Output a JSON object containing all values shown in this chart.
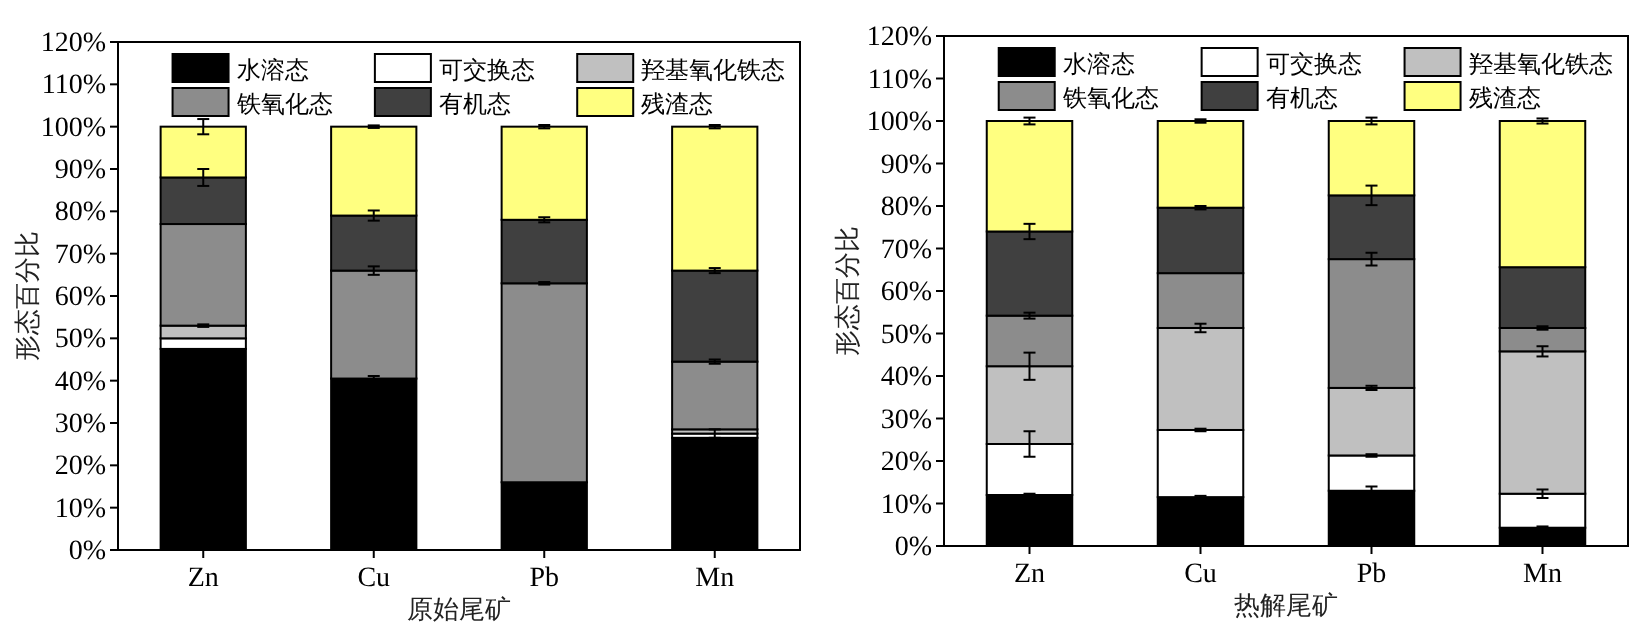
{
  "chart_data": [
    {
      "type": "bar",
      "stacked": true,
      "xlabel": "原始尾矿",
      "ylabel": "形态百分比",
      "categories": [
        "Zn",
        "Cu",
        "Pb",
        "Mn"
      ],
      "ylim": [
        0,
        120
      ],
      "yticks": [
        {
          "value": 0,
          "label": "0%"
        },
        {
          "value": 10,
          "label": "10%"
        },
        {
          "value": 20,
          "label": "20%"
        },
        {
          "value": 30,
          "label": "30%"
        },
        {
          "value": 40,
          "label": "40%"
        },
        {
          "value": 50,
          "label": "50%"
        },
        {
          "value": 60,
          "label": "60%"
        },
        {
          "value": 70,
          "label": "70%"
        },
        {
          "value": 80,
          "label": "80%"
        },
        {
          "value": 90,
          "label": "90%"
        },
        {
          "value": 100,
          "label": "100%"
        },
        {
          "value": 110,
          "label": "110%"
        },
        {
          "value": 120,
          "label": "120%"
        }
      ],
      "legend": "top",
      "grid": false,
      "series": [
        {
          "name": "水溶态",
          "color": "#000000",
          "values": [
            47.5,
            40.5,
            16,
            26.5
          ],
          "errors": [
            null,
            0.6,
            null,
            null
          ]
        },
        {
          "name": "可交换态",
          "color": "#ffffff",
          "values": [
            2.5,
            null,
            0,
            1
          ],
          "errors": [
            null,
            null,
            null,
            1
          ]
        },
        {
          "name": "羟基氧化铁态",
          "color": "#c0c0c0",
          "values": [
            3,
            null,
            0,
            1
          ],
          "errors": [
            0.3,
            null,
            null,
            null
          ]
        },
        {
          "name": "铁氧化态",
          "color": "#8c8c8c",
          "values": [
            24,
            25.5,
            47,
            16
          ],
          "errors": [
            null,
            1,
            0.3,
            0.5
          ]
        },
        {
          "name": "有机态",
          "color": "#404040",
          "values": [
            11,
            13,
            15,
            21.5
          ],
          "errors": [
            2,
            1.2,
            0.6,
            0.6
          ]
        },
        {
          "name": "残渣态",
          "color": "#ffff80",
          "values": [
            12,
            21,
            22,
            34
          ],
          "errors": [
            1.8,
            0.3,
            0.4,
            0.4
          ]
        }
      ]
    },
    {
      "type": "bar",
      "stacked": true,
      "xlabel": "热解尾矿",
      "ylabel": "形态百分比",
      "categories": [
        "Zn",
        "Cu",
        "Pb",
        "Mn"
      ],
      "ylim": [
        0,
        120
      ],
      "yticks": [
        {
          "value": 0,
          "label": "0%"
        },
        {
          "value": 10,
          "label": "10%"
        },
        {
          "value": 20,
          "label": "20%"
        },
        {
          "value": 30,
          "label": "30%"
        },
        {
          "value": 40,
          "label": "40%"
        },
        {
          "value": 50,
          "label": "50%"
        },
        {
          "value": 60,
          "label": "60%"
        },
        {
          "value": 70,
          "label": "70%"
        },
        {
          "value": 80,
          "label": "80%"
        },
        {
          "value": 90,
          "label": "90%"
        },
        {
          "value": 100,
          "label": "100%"
        },
        {
          "value": 110,
          "label": "110%"
        },
        {
          "value": 120,
          "label": "120%"
        }
      ],
      "legend": "top",
      "grid": false,
      "series": [
        {
          "name": "水溶态",
          "color": "#000000",
          "values": [
            12,
            11.5,
            13,
            4.3
          ],
          "errors": [
            0.3,
            0.3,
            1,
            0.3
          ]
        },
        {
          "name": "可交换态",
          "color": "#ffffff",
          "values": [
            12,
            15.8,
            8.3,
            8
          ],
          "errors": [
            3,
            0.3,
            0.3,
            1
          ]
        },
        {
          "name": "羟基氧化铁态",
          "color": "#c0c0c0",
          "values": [
            18.3,
            24,
            15.9,
            33.5
          ],
          "errors": [
            3.2,
            1,
            0.5,
            1.2
          ]
        },
        {
          "name": "铁氧化态",
          "color": "#8c8c8c",
          "values": [
            11.9,
            12.9,
            30.3,
            5.5
          ],
          "errors": [
            0.7,
            null,
            1.5,
            0.4
          ]
        },
        {
          "name": "有机态",
          "color": "#404040",
          "values": [
            19.8,
            15.4,
            15,
            14.3
          ],
          "errors": [
            1.8,
            0.4,
            2.3,
            null
          ]
        },
        {
          "name": "残渣态",
          "color": "#ffff80",
          "values": [
            26,
            20.4,
            17.5,
            34.4
          ],
          "errors": [
            0.8,
            0.4,
            0.8,
            0.6
          ]
        }
      ]
    }
  ]
}
